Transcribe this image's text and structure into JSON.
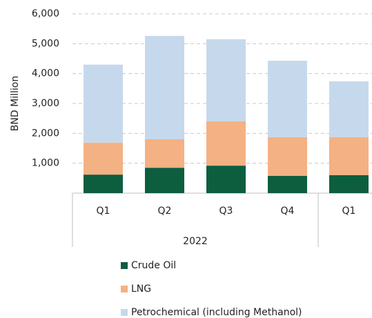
{
  "chart_data": {
    "type": "stacked_bar",
    "y_axis_label": "BND Million",
    "categories": [
      "Q1",
      "Q2",
      "Q3",
      "Q4",
      "Q1"
    ],
    "x_group_label": "2022",
    "series": [
      {
        "name": "Crude Oil",
        "color": "#0d5e3f",
        "values": [
          620,
          850,
          920,
          580,
          600
        ]
      },
      {
        "name": "LNG",
        "color": "#f4b183",
        "values": [
          1070,
          950,
          1480,
          1290,
          1270
        ]
      },
      {
        "name": "Petrochemical (including Methanol)",
        "color": "#c6d9ec",
        "values": [
          2610,
          3460,
          2750,
          2560,
          1870
        ]
      }
    ],
    "ylim": [
      0,
      6000
    ],
    "yticks": [
      {
        "value": 1000,
        "label": "1,000"
      },
      {
        "value": 2000,
        "label": "2,000"
      },
      {
        "value": 3000,
        "label": "3,000"
      },
      {
        "value": 4000,
        "label": "4,000"
      },
      {
        "value": 5000,
        "label": "5,000"
      },
      {
        "value": 6000,
        "label": "6,000"
      }
    ],
    "grid": true
  }
}
